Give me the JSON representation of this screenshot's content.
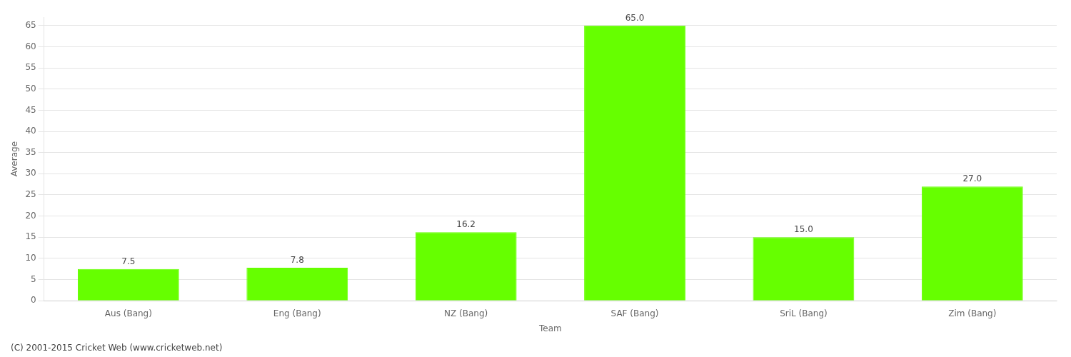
{
  "chart_data": {
    "type": "bar",
    "categories": [
      "Aus (Bang)",
      "Eng (Bang)",
      "NZ (Bang)",
      "SAF (Bang)",
      "SriL (Bang)",
      "Zim (Bang)"
    ],
    "values": [
      7.5,
      7.8,
      16.2,
      65.0,
      15.0,
      27.0
    ],
    "value_labels": [
      "7.5",
      "7.8",
      "16.2",
      "65.0",
      "15.0",
      "27.0"
    ],
    "data_labels": true,
    "color": "#66ff00",
    "x_label": "Team",
    "y_label": "Average",
    "ylim": [
      0,
      67
    ],
    "yticks": [
      0,
      5,
      10,
      15,
      20,
      25,
      30,
      35,
      40,
      45,
      50,
      55,
      60,
      65
    ],
    "grid": true,
    "annotations": [
      "(C) 2001-2015 Cricket Web (www.cricketweb.net)"
    ]
  }
}
